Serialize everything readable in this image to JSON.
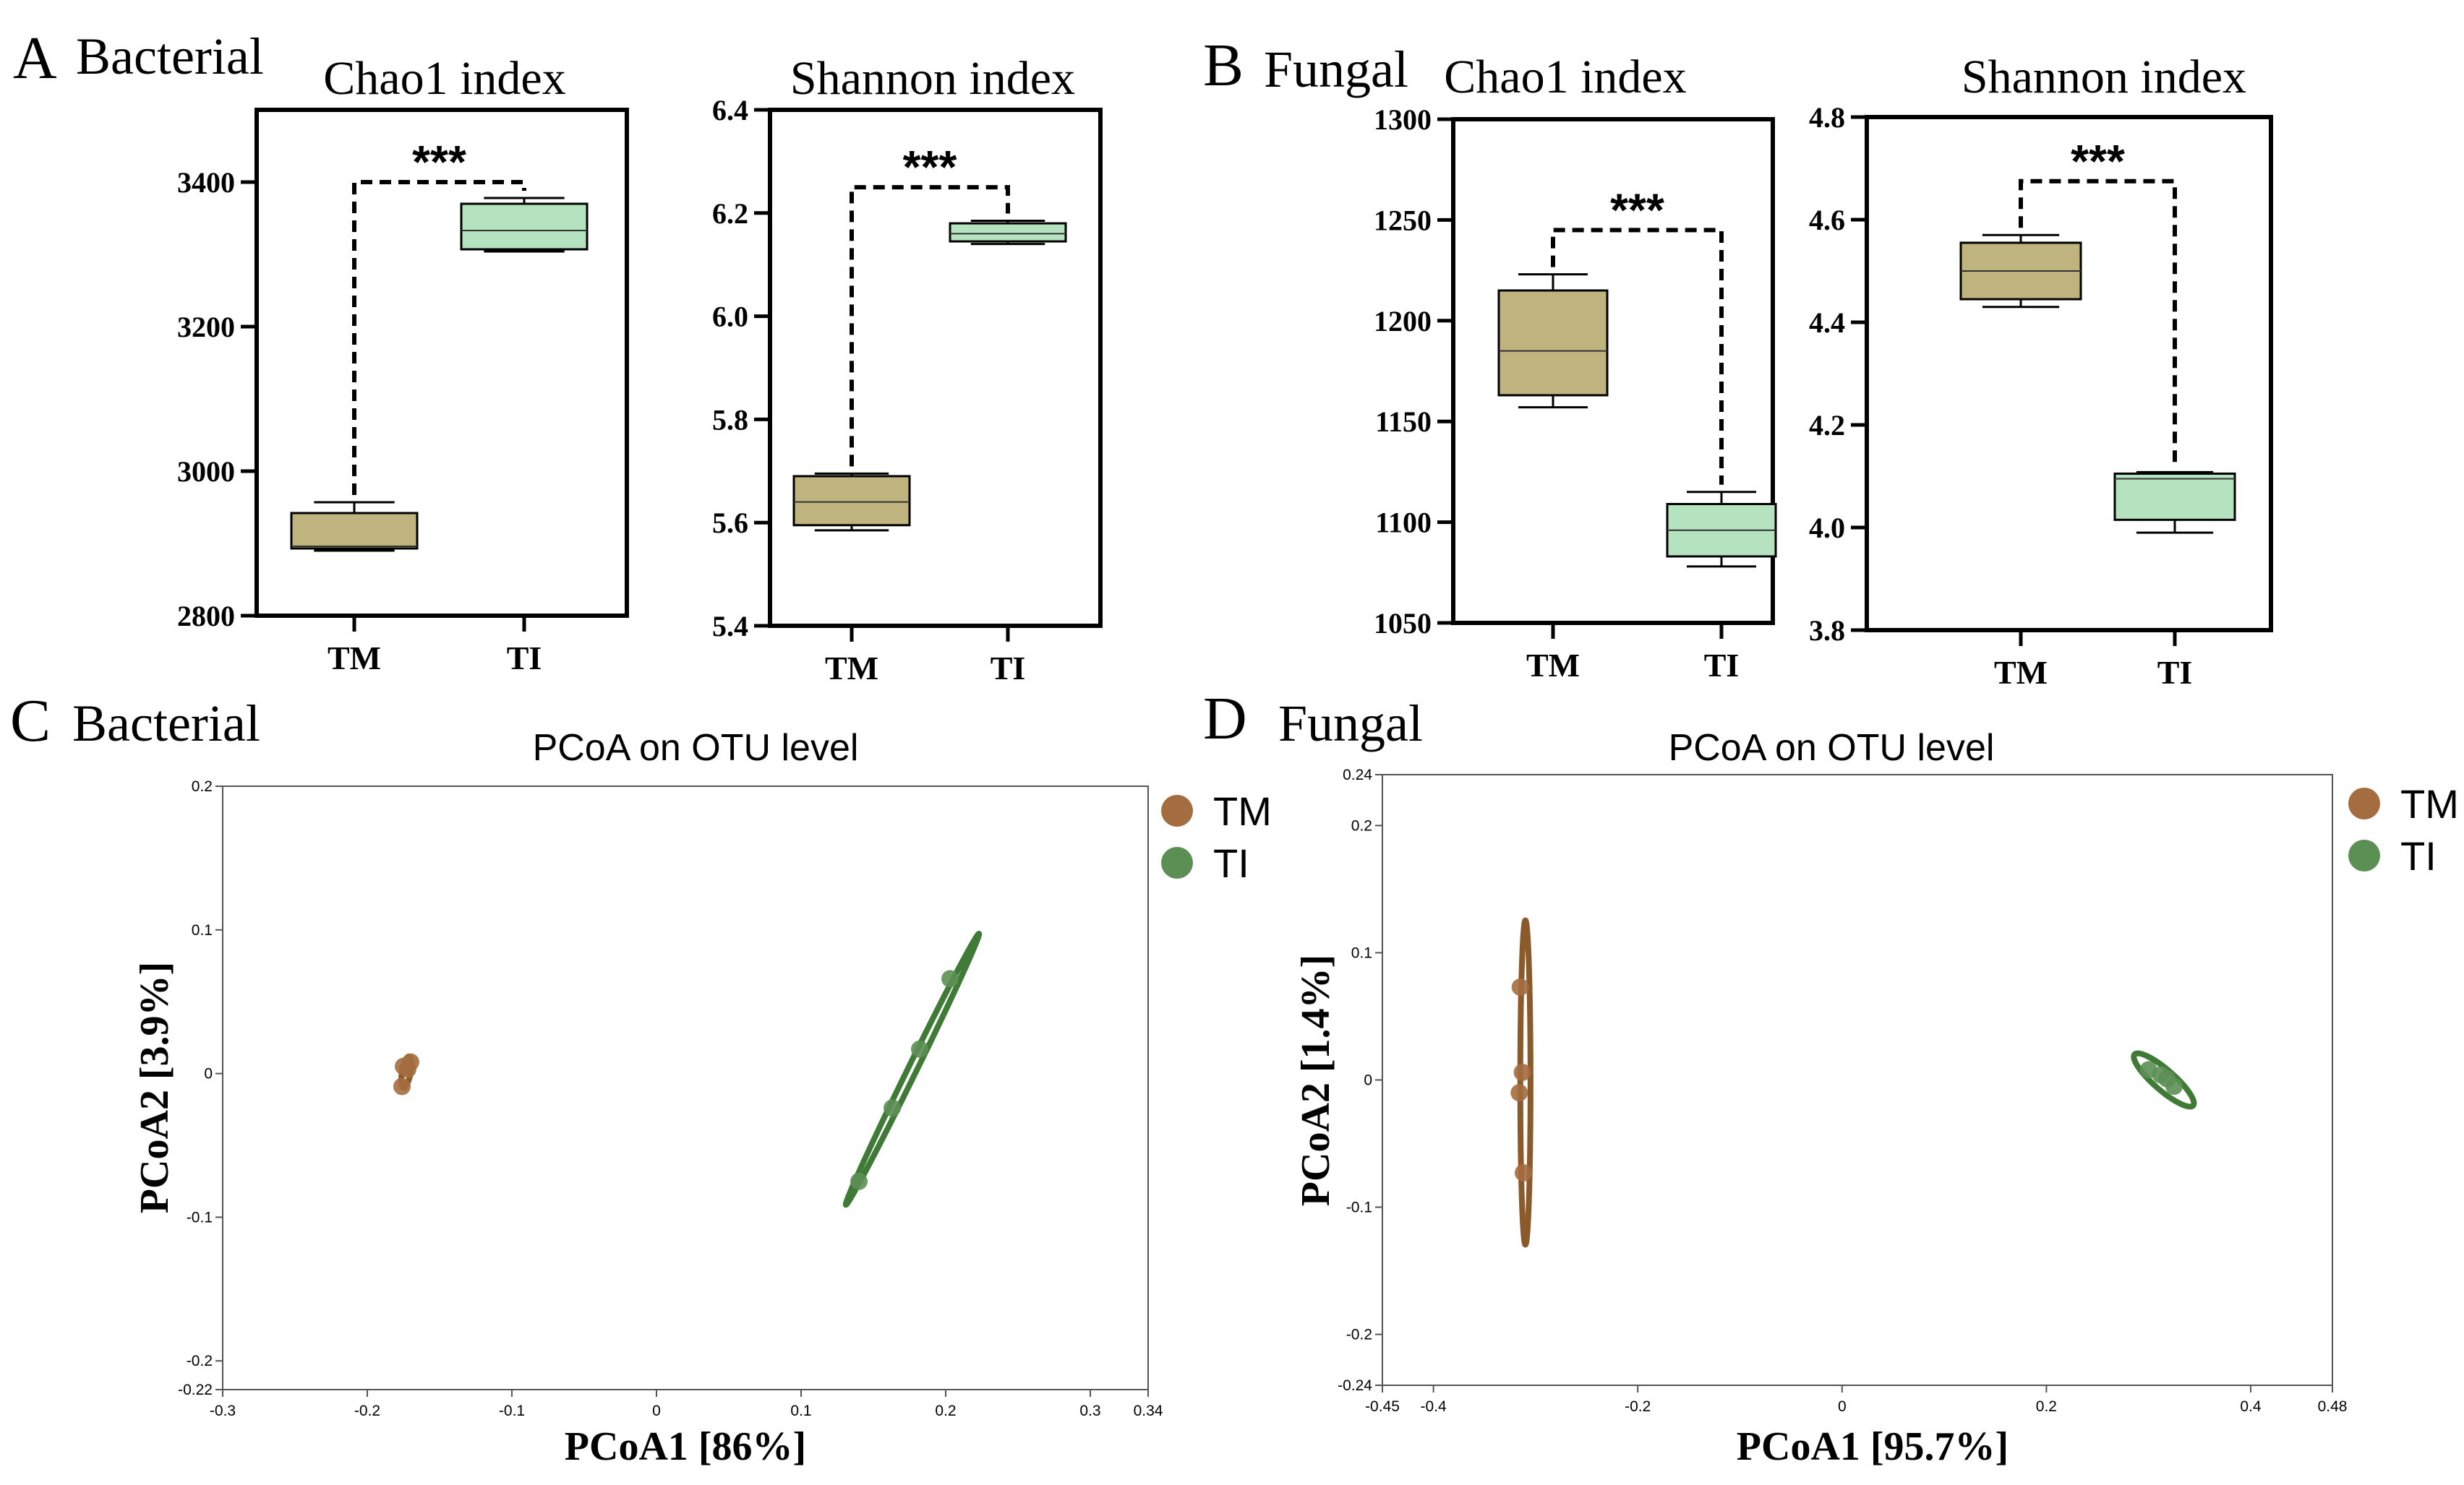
{
  "colors": {
    "tm_box": "#bfb47e",
    "ti_box": "#b5e3bf",
    "tm_point": "#a46d3f",
    "ti_point": "#5c8f54",
    "tm_ellipse": "#8b5a2b",
    "ti_ellipse": "#3f7a36"
  },
  "chart_data": [
    {
      "panel": "A",
      "group": "Bacterial",
      "title": "Chao1  index",
      "type": "box",
      "categories": [
        "TM",
        "TI"
      ],
      "ylim": [
        2800,
        3500
      ],
      "yticks": [
        2800,
        3000,
        3200,
        3400
      ],
      "boxes": [
        {
          "name": "TM",
          "min": 2890,
          "q1": 2893,
          "median": 2896,
          "q3": 2942,
          "max": 2957
        },
        {
          "name": "TI",
          "min": 3304,
          "q1": 3307,
          "median": 3333,
          "q3": 3370,
          "max": 3378
        }
      ],
      "significance": {
        "label": "***",
        "level": 3400
      }
    },
    {
      "panel": "",
      "group": "",
      "title": "Shannon  index",
      "type": "box",
      "categories": [
        "TM",
        "TI"
      ],
      "ylim": [
        5.4,
        6.4
      ],
      "yticks": [
        5.4,
        5.6,
        5.8,
        6.0,
        6.2,
        6.4
      ],
      "boxes": [
        {
          "name": "TM",
          "min": 5.585,
          "q1": 5.595,
          "median": 5.64,
          "q3": 5.69,
          "max": 5.695
        },
        {
          "name": "TI",
          "min": 6.14,
          "q1": 6.145,
          "median": 6.16,
          "q3": 6.18,
          "max": 6.185
        }
      ],
      "significance": {
        "label": "***",
        "level": 6.25
      }
    },
    {
      "panel": "B",
      "group": "Fungal",
      "title": "Chao1  index",
      "type": "box",
      "categories": [
        "TM",
        "TI"
      ],
      "ylim": [
        1050,
        1300
      ],
      "yticks": [
        1050,
        1100,
        1150,
        1200,
        1250,
        1300
      ],
      "boxes": [
        {
          "name": "TM",
          "min": 1157,
          "q1": 1163,
          "median": 1185,
          "q3": 1215,
          "max": 1223
        },
        {
          "name": "TI",
          "min": 1078,
          "q1": 1083,
          "median": 1096,
          "q3": 1109,
          "max": 1115
        }
      ],
      "significance": {
        "label": "***",
        "level": 1245
      }
    },
    {
      "panel": "",
      "group": "",
      "title": "Shannon  index",
      "type": "box",
      "categories": [
        "TM",
        "TI"
      ],
      "ylim": [
        3.8,
        4.8
      ],
      "yticks": [
        3.8,
        4.0,
        4.2,
        4.4,
        4.6,
        4.8
      ],
      "boxes": [
        {
          "name": "TM",
          "min": 4.43,
          "q1": 4.445,
          "median": 4.5,
          "q3": 4.555,
          "max": 4.57
        },
        {
          "name": "TI",
          "min": 3.99,
          "q1": 4.015,
          "median": 4.095,
          "q3": 4.105,
          "max": 4.108
        }
      ],
      "significance": {
        "label": "***",
        "level": 4.675
      }
    },
    {
      "panel": "C",
      "group": "Bacterial",
      "title": "PCoA on OTU level",
      "type": "scatter",
      "xlabel": "PCoA1 [86%]",
      "ylabel": "PCoA2 [3.9%]",
      "xlim": [
        -0.3,
        0.34
      ],
      "ylim": [
        -0.22,
        0.2
      ],
      "xticks": [
        "-0.3",
        "-0.2",
        "-0.1",
        "0",
        "0.1",
        "0.2",
        "0.3",
        "0.34"
      ],
      "xtick_values": [
        -0.3,
        -0.2,
        -0.1,
        0,
        0.1,
        0.2,
        0.3,
        0.34
      ],
      "yticks": [
        "-0.22",
        "-0.2",
        "-0.1",
        "0",
        "0.1",
        "0.2"
      ],
      "ytick_values": [
        -0.22,
        -0.2,
        -0.1,
        0,
        0.1,
        0.2
      ],
      "legend": "top-right",
      "series": [
        {
          "name": "TM",
          "points": [
            [
              -0.175,
              0.005
            ],
            [
              -0.17,
              0.008
            ],
            [
              -0.176,
              -0.009
            ],
            [
              -0.172,
              0.003
            ]
          ],
          "ellipse": {
            "cx": -0.173,
            "cy": 0.001,
            "length": 0.022,
            "width": 0.006,
            "angle": 80
          }
        },
        {
          "name": "TI",
          "points": [
            [
              0.14,
              -0.075
            ],
            [
              0.163,
              -0.024
            ],
            [
              0.182,
              0.017
            ],
            [
              0.203,
              0.066
            ]
          ],
          "ellipse": {
            "cx": 0.177,
            "cy": 0.003,
            "length": 0.21,
            "width": 0.006,
            "angle": 64
          }
        }
      ]
    },
    {
      "panel": "D",
      "group": "Fungal",
      "title": "PCoA on OTU level",
      "type": "scatter",
      "xlabel": "PCoA1 [95.7%]",
      "ylabel": "PCoA2 [1.4%]",
      "xlim": [
        -0.45,
        0.48
      ],
      "ylim": [
        -0.24,
        0.24
      ],
      "xticks": [
        "-0.45",
        "-0.4",
        "-0.2",
        "0",
        "0.2",
        "0.4",
        "0.48"
      ],
      "xtick_values": [
        -0.45,
        -0.4,
        -0.2,
        0,
        0.2,
        0.4,
        0.48
      ],
      "yticks": [
        "-0.24",
        "-0.2",
        "-0.1",
        "0",
        "0.1",
        "0.2",
        "0.24"
      ],
      "ytick_values": [
        -0.24,
        -0.2,
        -0.1,
        0,
        0.1,
        0.2,
        0.24
      ],
      "legend": "top-right",
      "series": [
        {
          "name": "TM",
          "points": [
            [
              -0.315,
              0.073
            ],
            [
              -0.313,
              0.006
            ],
            [
              -0.316,
              -0.01
            ],
            [
              -0.312,
              -0.073
            ]
          ],
          "ellipse": {
            "cx": -0.31,
            "cy": -0.002,
            "length": 0.255,
            "width": 0.01,
            "angle": 90
          }
        },
        {
          "name": "TI",
          "points": [
            [
              0.3,
              0.008
            ],
            [
              0.318,
              0.001
            ],
            [
              0.325,
              -0.005
            ],
            [
              0.312,
              0.004
            ]
          ],
          "ellipse": {
            "cx": 0.315,
            "cy": 0.0,
            "length": 0.07,
            "width": 0.02,
            "angle": -35
          }
        }
      ]
    }
  ]
}
